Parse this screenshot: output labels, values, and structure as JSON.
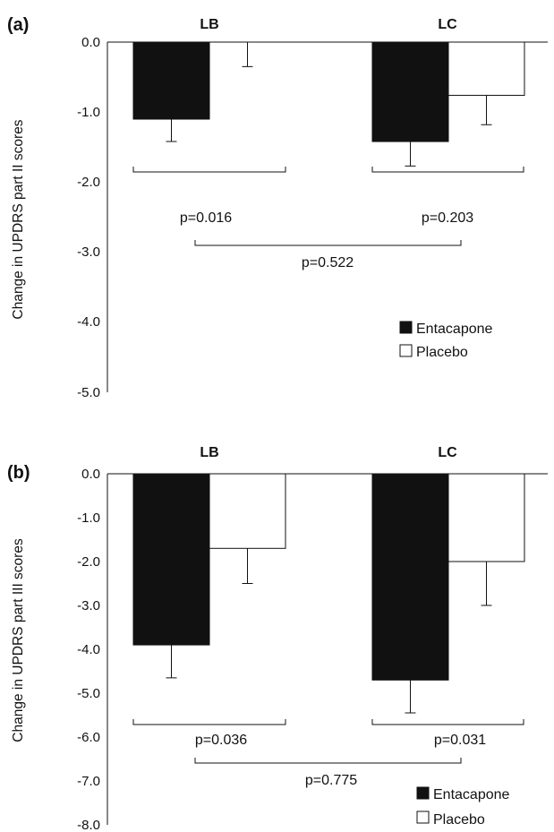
{
  "chart_data": [
    {
      "type": "bar",
      "panel_label": "(a)",
      "categories": [
        "LB",
        "LC"
      ],
      "series": [
        {
          "name": "Entacapone",
          "values": [
            -1.1,
            -1.42
          ],
          "errors": [
            0.32,
            0.35
          ],
          "color": "#111111"
        },
        {
          "name": "Placebo",
          "values": [
            0.0,
            -0.76
          ],
          "errors": [
            0.35,
            0.42
          ],
          "color": "#ffffff"
        }
      ],
      "ylabel": "Change in UPDRS part II scores",
      "ylim": [
        -5.0,
        0.0
      ],
      "yticks": [
        "0.0",
        "-1.0",
        "-2.0",
        "-3.0",
        "-4.0",
        "-5.0"
      ],
      "ytick_values": [
        0,
        -1,
        -2,
        -3,
        -4,
        -5
      ],
      "comparisons": [
        {
          "label": "p=0.016",
          "between": "LB-within"
        },
        {
          "label": "p=0.203",
          "between": "LC-within"
        },
        {
          "label": "p=0.522",
          "between": "LB-vs-LC"
        }
      ],
      "legend_position": "bottom-right"
    },
    {
      "type": "bar",
      "panel_label": "(b)",
      "categories": [
        "LB",
        "LC"
      ],
      "series": [
        {
          "name": "Entacapone",
          "values": [
            -3.9,
            -4.7
          ],
          "errors": [
            0.75,
            0.75
          ],
          "color": "#111111"
        },
        {
          "name": "Placebo",
          "values": [
            -1.7,
            -2.0
          ],
          "errors": [
            0.8,
            1.0
          ],
          "color": "#ffffff"
        }
      ],
      "ylabel": "Change in UPDRS part III scores",
      "ylim": [
        -8.0,
        0.0
      ],
      "yticks": [
        "0.0",
        "-1.0",
        "-2.0",
        "-3.0",
        "-4.0",
        "-5.0",
        "-6.0",
        "-7.0",
        "-8.0"
      ],
      "ytick_values": [
        0,
        -1,
        -2,
        -3,
        -4,
        -5,
        -6,
        -7,
        -8
      ],
      "comparisons": [
        {
          "label": "p=0.036",
          "between": "LB-within"
        },
        {
          "label": "p=0.031",
          "between": "LC-within"
        },
        {
          "label": "p=0.775",
          "between": "LB-vs-LC"
        }
      ],
      "legend_position": "bottom-right"
    }
  ]
}
